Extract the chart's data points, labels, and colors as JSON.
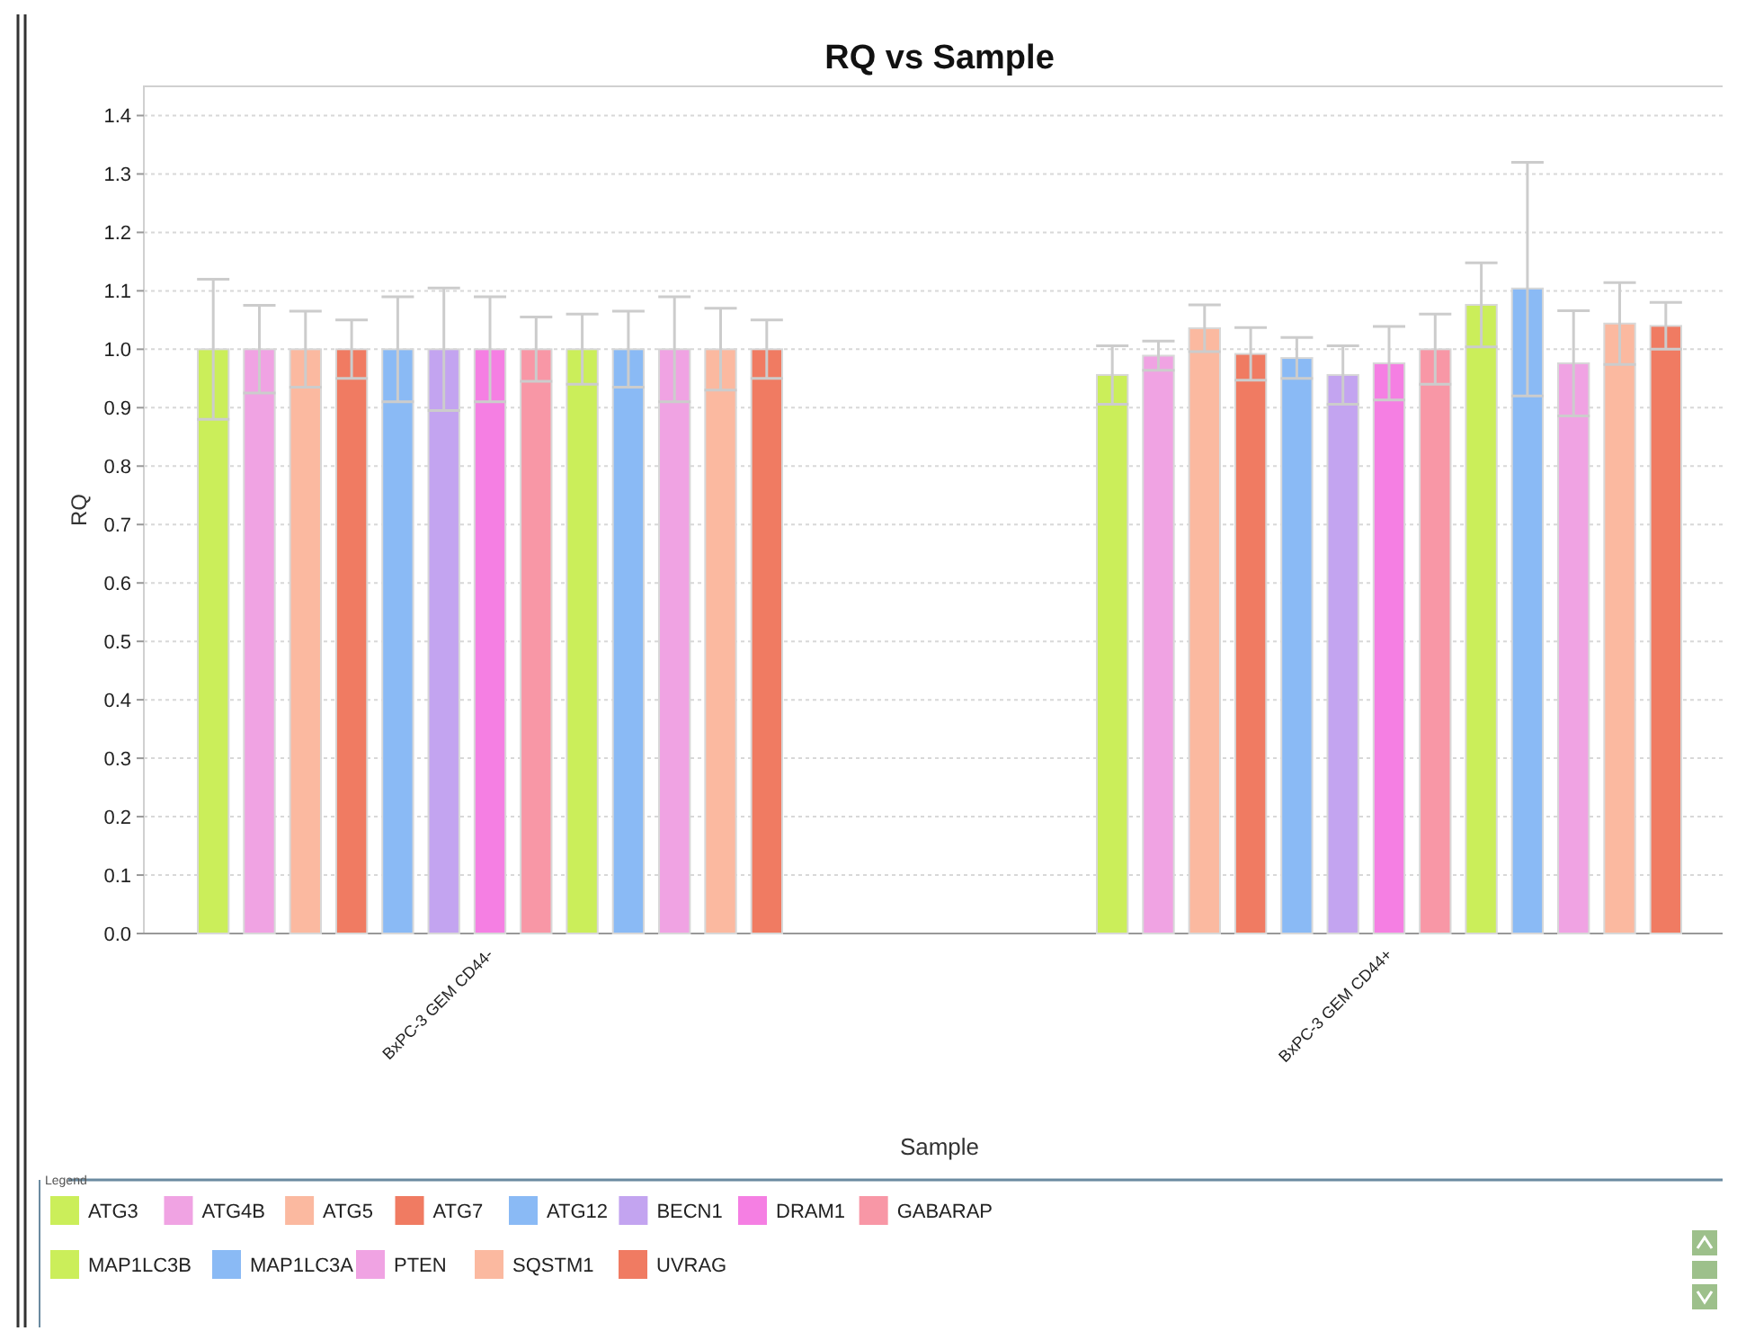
{
  "chart_data": {
    "type": "bar",
    "title": "RQ vs Sample",
    "xlabel": "Sample",
    "ylabel": "RQ",
    "legend_title": "Legend",
    "categories": [
      "BxPC-3 GEM CD44-",
      "BxPC-3 GEM CD44+"
    ],
    "ylim": [
      0,
      1.45
    ],
    "yticks": [
      {
        "value": 0,
        "label": "0.0"
      },
      {
        "value": 0.1,
        "label": "0.1"
      },
      {
        "value": 0.2,
        "label": "0.2"
      },
      {
        "value": 0.3,
        "label": "0.3"
      },
      {
        "value": 0.4,
        "label": "0.4"
      },
      {
        "value": 0.5,
        "label": "0.5"
      },
      {
        "value": 0.6,
        "label": "0.6"
      },
      {
        "value": 0.7,
        "label": "0.7"
      },
      {
        "value": 0.8,
        "label": "0.8"
      },
      {
        "value": 0.9,
        "label": "0.9"
      },
      {
        "value": 1,
        "label": "1.0"
      },
      {
        "value": 1.1,
        "label": "1.1"
      },
      {
        "value": 1.2,
        "label": "1.2"
      },
      {
        "value": 1.3,
        "label": "1.3"
      },
      {
        "value": 1.4,
        "label": "1.4"
      }
    ],
    "grid": "y",
    "legend": "bottom",
    "series": [
      {
        "name": "ATG3",
        "color": "#cbee5a",
        "values": [
          1.0,
          0.956
        ],
        "errors": [
          0.12,
          0.05
        ]
      },
      {
        "name": "ATG4B",
        "color": "#f0a3e3",
        "values": [
          1.0,
          0.989
        ],
        "errors": [
          0.075,
          0.025
        ]
      },
      {
        "name": "ATG5",
        "color": "#fbb9a0",
        "values": [
          1.0,
          1.036
        ],
        "errors": [
          0.065,
          0.04
        ]
      },
      {
        "name": "ATG7",
        "color": "#f07b62",
        "values": [
          1.0,
          0.992
        ],
        "errors": [
          0.05,
          0.045
        ]
      },
      {
        "name": "ATG12",
        "color": "#8abaf5",
        "values": [
          1.0,
          0.985
        ],
        "errors": [
          0.09,
          0.035
        ]
      },
      {
        "name": "BECN1",
        "color": "#c3a4f0",
        "values": [
          1.0,
          0.956
        ],
        "errors": [
          0.105,
          0.05
        ]
      },
      {
        "name": "DRAM1",
        "color": "#f57fe3",
        "values": [
          1.0,
          0.976
        ],
        "errors": [
          0.09,
          0.063
        ]
      },
      {
        "name": "GABARAP",
        "color": "#f897a6",
        "values": [
          1.0,
          1.0
        ],
        "errors": [
          0.055,
          0.06
        ]
      },
      {
        "name": "MAP1LC3B",
        "color": "#cbee5a",
        "values": [
          1.0,
          1.076
        ],
        "errors": [
          0.06,
          0.072
        ]
      },
      {
        "name": "MAP1LC3A",
        "color": "#8abaf5",
        "values": [
          1.0,
          1.104
        ],
        "errors": [
          0.065,
          [
            0.92,
            1.32
          ]
        ]
      },
      {
        "name": "PTEN",
        "color": "#f0a3e3",
        "values": [
          1.0,
          0.976
        ],
        "errors": [
          0.09,
          0.09
        ]
      },
      {
        "name": "SQSTM1",
        "color": "#fbb9a0",
        "values": [
          1.0,
          1.044
        ],
        "errors": [
          0.07,
          0.07
        ]
      },
      {
        "name": "UVRAG",
        "color": "#f07b62",
        "values": [
          1.0,
          1.04
        ],
        "errors": [
          0.05,
          0.04
        ]
      }
    ]
  }
}
